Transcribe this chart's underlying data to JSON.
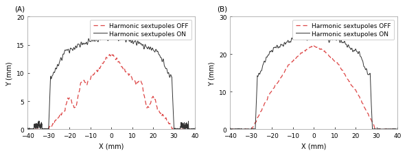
{
  "panel_A": {
    "label": "(A)",
    "ylim": [
      0,
      20
    ],
    "xlim": [
      -40,
      40
    ],
    "yticks": [
      0,
      5,
      10,
      15,
      20
    ],
    "xticks": [
      -40,
      -30,
      -20,
      -10,
      0,
      10,
      20,
      30,
      40
    ],
    "ylabel": "Y (mm)",
    "xlabel": "X (mm)",
    "on_color": "#333333",
    "off_color": "#dd4444",
    "on_label": "Harmonic sextupoles ON",
    "off_label": "Harmonic sextupoles OFF"
  },
  "panel_B": {
    "label": "(B)",
    "ylim": [
      0,
      30
    ],
    "xlim": [
      -40,
      40
    ],
    "yticks": [
      0,
      10,
      20,
      30
    ],
    "xticks": [
      -40,
      -30,
      -20,
      -10,
      0,
      10,
      20,
      30,
      40
    ],
    "ylabel": "Y (mm)",
    "xlabel": "X (mm)",
    "on_color": "#333333",
    "off_color": "#dd4444",
    "on_label": "Harmonic sextupoles ON",
    "off_label": "Harmonic sextupoles OFF"
  },
  "background_color": "#ffffff",
  "fontsize": 7
}
